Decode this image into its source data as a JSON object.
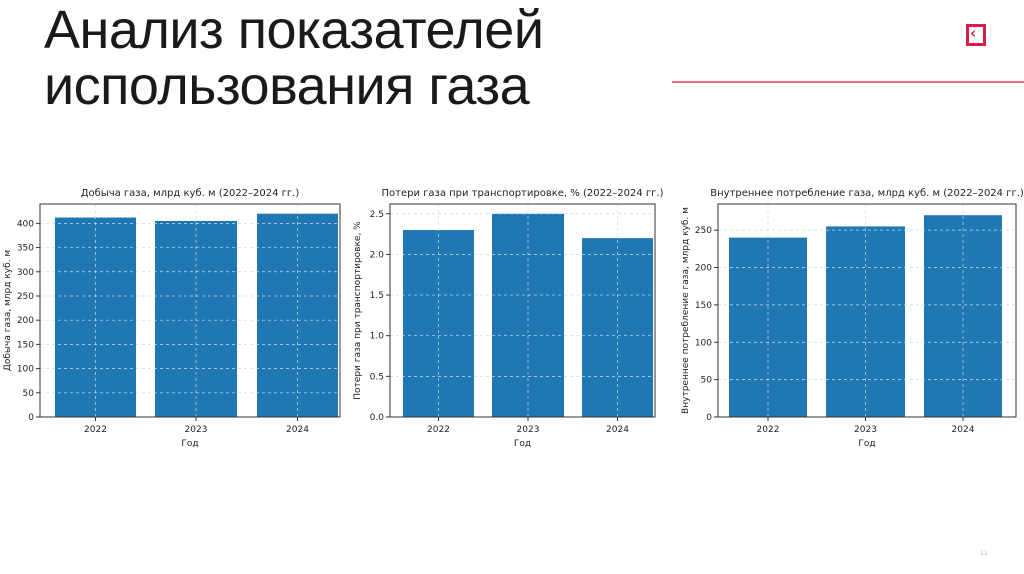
{
  "slide": {
    "title_line1": "Анализ показателей",
    "title_line2": "использования газа",
    "page_number": "11",
    "accent_color": "#d81e48",
    "logo_icon": "back-arrow-square-icon"
  },
  "chart_data": [
    {
      "type": "bar",
      "title": "Добыча газа, млрд куб. м (2022–2024 гг.)",
      "xlabel": "Год",
      "ylabel": "Добыча газа, млрд куб. м",
      "categories": [
        "2022",
        "2023",
        "2024"
      ],
      "values": [
        412,
        405,
        420
      ],
      "ylim": [
        0,
        440
      ],
      "yticks": [
        "0",
        "50",
        "100",
        "150",
        "200",
        "250",
        "300",
        "350",
        "400"
      ],
      "grid": true,
      "color": "#1f77b4"
    },
    {
      "type": "bar",
      "title": "Потери газа при транспортировке, % (2022–2024 гг.)",
      "xlabel": "Год",
      "ylabel": "Потери газа при транспортировке, %",
      "categories": [
        "2022",
        "2023",
        "2024"
      ],
      "values": [
        2.3,
        2.5,
        2.2
      ],
      "ylim": [
        0,
        2.62
      ],
      "yticks": [
        "0.0",
        "0.5",
        "1.0",
        "1.5",
        "2.0",
        "2.5"
      ],
      "grid": true,
      "color": "#1f77b4"
    },
    {
      "type": "bar",
      "title": "Внутреннее потребление газа, млрд куб. м (2022–2024 гг.)",
      "xlabel": "Год",
      "ylabel": "Внутреннее потребление газа, млрд куб. м",
      "categories": [
        "2022",
        "2023",
        "2024"
      ],
      "values": [
        240,
        255,
        270
      ],
      "ylim": [
        0,
        285
      ],
      "yticks": [
        "0",
        "50",
        "100",
        "150",
        "200",
        "250"
      ],
      "grid": true,
      "color": "#1f77b4"
    }
  ]
}
